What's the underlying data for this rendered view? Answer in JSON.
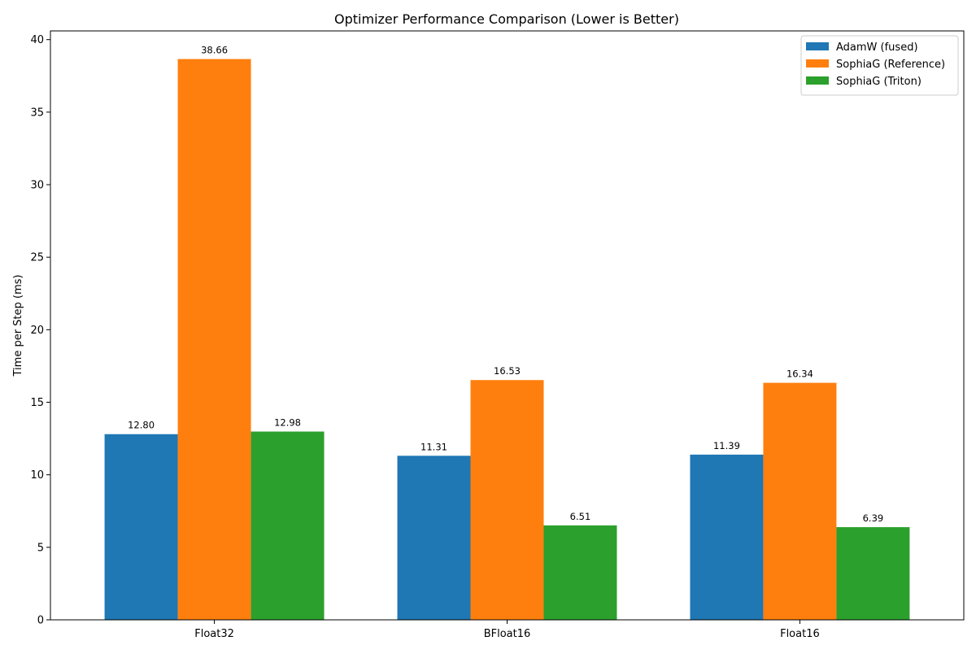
{
  "chart_data": {
    "type": "bar",
    "title": "Optimizer Performance Comparison (Lower is Better)",
    "xlabel": "",
    "ylabel": "Time per Step (ms)",
    "categories": [
      "Float32",
      "BFloat16",
      "Float16"
    ],
    "series": [
      {
        "name": "AdamW (fused)",
        "color": "#1f77b4",
        "values": [
          12.8,
          11.31,
          11.39
        ],
        "labels": [
          "12.80",
          "11.31",
          "11.39"
        ]
      },
      {
        "name": "SophiaG (Reference)",
        "color": "#ff7f0e",
        "values": [
          38.66,
          16.53,
          16.34
        ],
        "labels": [
          "38.66",
          "16.53",
          "16.34"
        ]
      },
      {
        "name": "SophiaG (Triton)",
        "color": "#2ca02c",
        "values": [
          12.98,
          6.51,
          6.39
        ],
        "labels": [
          "12.98",
          "6.51",
          "6.39"
        ]
      }
    ],
    "ylim": [
      0,
      40.6
    ],
    "yticks": [
      0,
      5,
      10,
      15,
      20,
      25,
      30,
      35,
      40
    ],
    "grid": false,
    "legend_position": "top-right"
  }
}
